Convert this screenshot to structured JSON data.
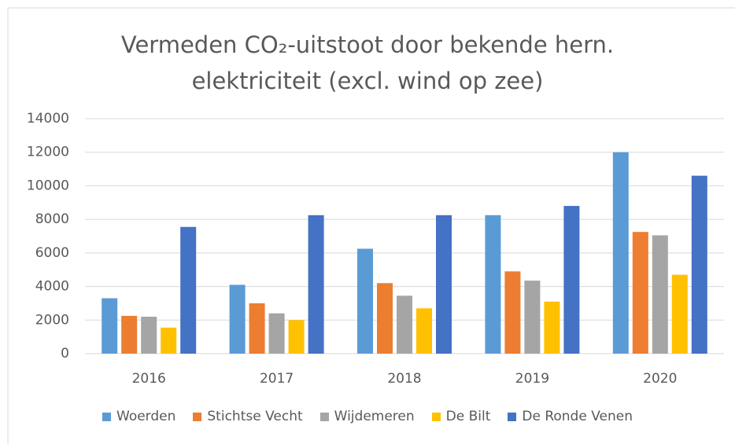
{
  "chart_data": {
    "type": "bar",
    "title": "Vermeden CO₂-uitstoot door bekende hern. elektriciteit (excl. wind op zee)",
    "categories": [
      "2016",
      "2017",
      "2018",
      "2019",
      "2020"
    ],
    "series": [
      {
        "name": "Woerden",
        "color": "#5b9bd5",
        "values": [
          3300,
          4100,
          6250,
          8250,
          12000
        ]
      },
      {
        "name": "Stichtse Vecht",
        "color": "#ed7d31",
        "values": [
          2250,
          3000,
          4200,
          4900,
          7250
        ]
      },
      {
        "name": "Wijdemeren",
        "color": "#a5a5a5",
        "values": [
          2200,
          2400,
          3450,
          4350,
          7050
        ]
      },
      {
        "name": "De Bilt",
        "color": "#ffc000",
        "values": [
          1550,
          2000,
          2700,
          3100,
          4700
        ]
      },
      {
        "name": "De Ronde Venen",
        "color": "#4472c4",
        "values": [
          7550,
          8250,
          8250,
          8800,
          10600
        ]
      }
    ],
    "ylim": [
      0,
      14000
    ],
    "yticks": [
      0,
      2000,
      4000,
      6000,
      8000,
      10000,
      12000,
      14000
    ],
    "grid": true,
    "legend": "bottom"
  }
}
